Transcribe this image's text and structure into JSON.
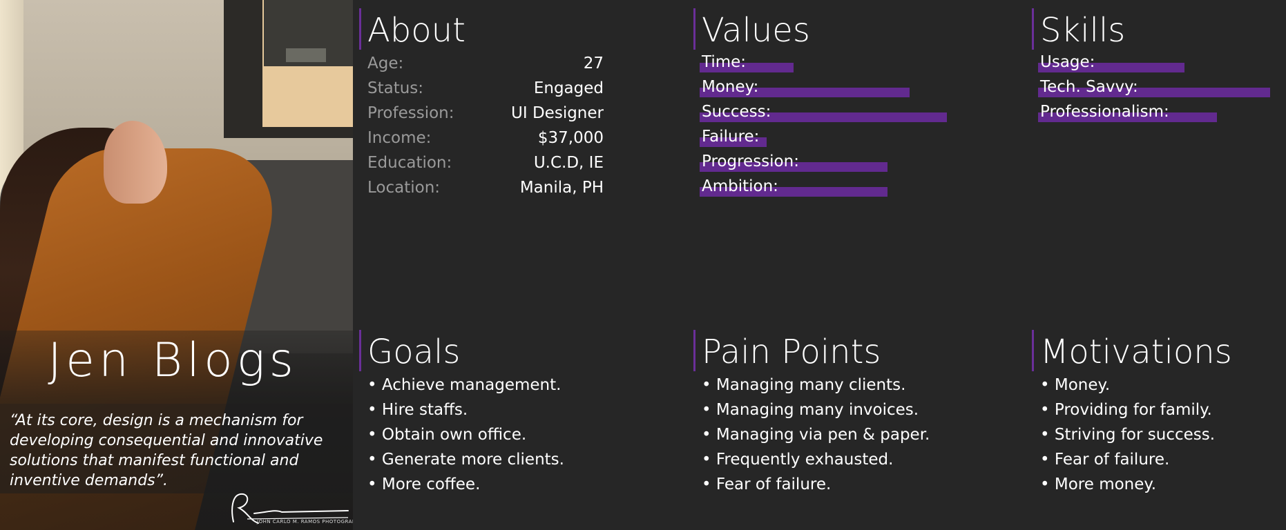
{
  "persona": {
    "name": "Jen Blogs",
    "quote": "“At its core, design is a mechanism for developing consequential and innovative solutions that manifest functional and inventive demands”.",
    "photo_credit": "JOHN CARLO M. RAMOS PHOTOGRAPHY"
  },
  "about": {
    "title": "About",
    "rows": [
      {
        "label": "Age:",
        "value": "27"
      },
      {
        "label": "Status:",
        "value": "Engaged"
      },
      {
        "label": "Profession:",
        "value": "UI Designer"
      },
      {
        "label": "Income:",
        "value": "$37,000"
      },
      {
        "label": "Education:",
        "value": "U.C.D, IE"
      },
      {
        "label": "Location:",
        "value": "Manila, PH"
      }
    ]
  },
  "values": {
    "title": "Values",
    "items": [
      {
        "label": "Time:",
        "level": 0.38
      },
      {
        "label": "Money:",
        "level": 0.85
      },
      {
        "label": "Success:",
        "level": 1.0
      },
      {
        "label": "Failure:",
        "level": 0.27
      },
      {
        "label": "Progression:",
        "level": 0.76
      },
      {
        "label": "Ambition:",
        "level": 0.76
      }
    ]
  },
  "skills": {
    "title": "Skills",
    "items": [
      {
        "label": "Usage:",
        "level": 0.63
      },
      {
        "label": "Tech. Savvy:",
        "level": 1.0
      },
      {
        "label": "Professionalism:",
        "level": 0.77
      }
    ]
  },
  "goals": {
    "title": "Goals",
    "items": [
      "• Achieve management.",
      "• Hire staffs.",
      "• Obtain own office.",
      "• Generate more clients.",
      "• More coffee."
    ]
  },
  "pain_points": {
    "title": "Pain Points",
    "items": [
      "• Managing many clients.",
      "• Managing many invoices.",
      "• Managing via pen & paper.",
      "• Frequently exhausted.",
      "• Fear of failure."
    ]
  },
  "motivations": {
    "title": "Motivations",
    "items": [
      "• Money.",
      "• Providing for family.",
      "• Striving for success.",
      "• Fear of failure.",
      "• More money."
    ]
  },
  "colors": {
    "background": "#262626",
    "accent": "#622a8f",
    "label_muted": "#9a9a9a",
    "text": "#ffffff"
  }
}
